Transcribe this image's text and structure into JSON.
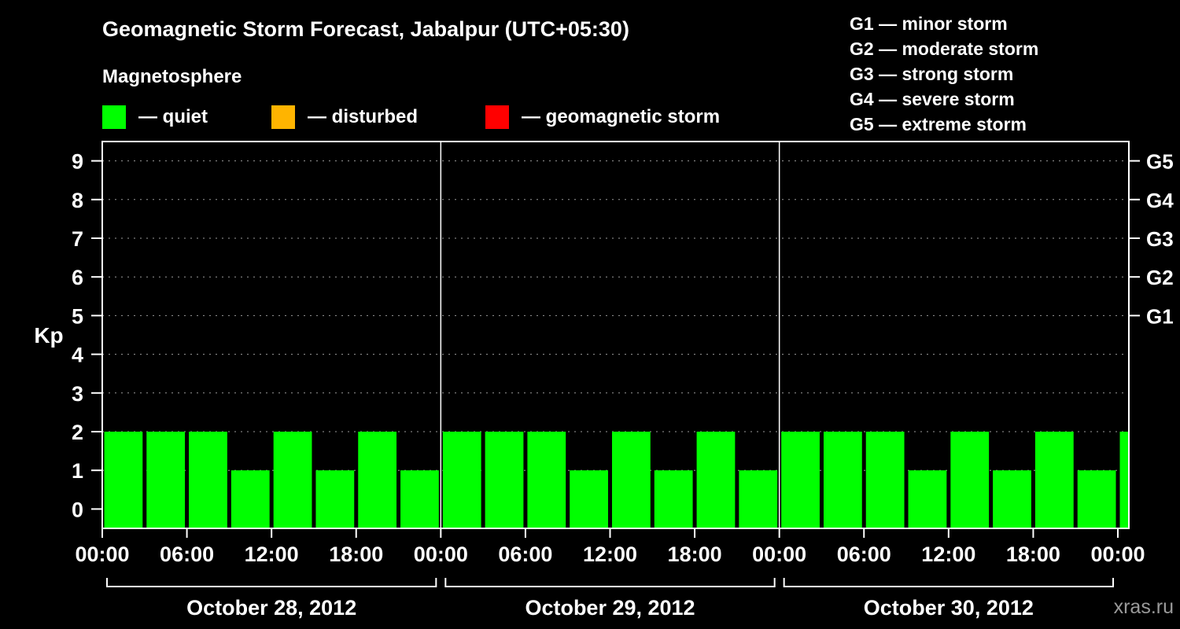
{
  "header": {
    "title": "Geomagnetic Storm Forecast, Jabalpur (UTC+05:30)",
    "legend_title": "Magnetosphere",
    "legend_items": [
      {
        "name": "quiet",
        "label": "— quiet",
        "color": "#00ff00"
      },
      {
        "name": "disturbed",
        "label": "— disturbed",
        "color": "#ffb400"
      },
      {
        "name": "storm",
        "label": "— geomagnetic storm",
        "color": "#ff0000"
      }
    ],
    "g_scale_legend": [
      "G1 — minor storm",
      "G2 — moderate storm",
      "G3 — strong storm",
      "G4 — severe storm",
      "G5 — extreme storm"
    ]
  },
  "watermark": "xras.ru",
  "chart_data": {
    "type": "bar",
    "title": "Geomagnetic Storm Forecast, Jabalpur (UTC+05:30)",
    "ylabel": "Kp",
    "ylim": [
      -0.5,
      9.5
    ],
    "y_ticks": [
      0,
      1,
      2,
      3,
      4,
      5,
      6,
      7,
      8,
      9
    ],
    "right_axis_ticks": [
      {
        "label": "G1",
        "value": 5
      },
      {
        "label": "G2",
        "value": 6
      },
      {
        "label": "G3",
        "value": 7
      },
      {
        "label": "G4",
        "value": 8
      },
      {
        "label": "G5",
        "value": 9
      }
    ],
    "x_tick_labels": [
      "00:00",
      "06:00",
      "12:00",
      "18:00",
      "00:00",
      "06:00",
      "12:00",
      "18:00",
      "00:00",
      "06:00",
      "12:00",
      "18:00",
      "00:00"
    ],
    "bar_interval_hours": 3,
    "bar_color": "#00ff00",
    "grid": "dashed horizontal lines at integer Kp values",
    "days": [
      {
        "date": "October 28, 2012",
        "values": [
          2,
          2,
          2,
          1,
          2,
          1,
          2,
          1
        ]
      },
      {
        "date": "October 29, 2012",
        "values": [
          2,
          2,
          2,
          1,
          2,
          1,
          2,
          1
        ]
      },
      {
        "date": "October 30, 2012",
        "values": [
          2,
          2,
          2,
          1,
          2,
          1,
          2,
          1
        ]
      }
    ],
    "partial_next_bar_value": 2
  }
}
